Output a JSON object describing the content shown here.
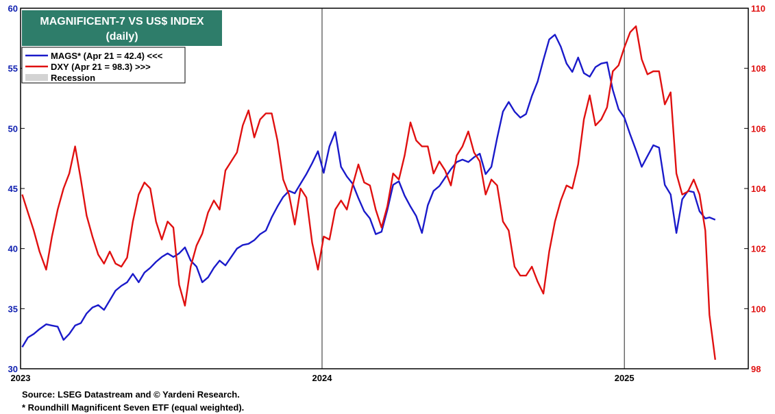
{
  "chart_data": {
    "type": "line",
    "title": "MAGNIFICENT-7 VS US$ INDEX",
    "subtitle": "(daily)",
    "x_tick_labels": [
      "2023",
      "2024",
      "2025"
    ],
    "x_range": [
      "2023-01-01",
      "2025-05-31"
    ],
    "year_starts": [
      "2023-01-01",
      "2024-01-01",
      "2025-01-01"
    ],
    "y_left": {
      "range": [
        30,
        60
      ],
      "ticks": [
        30,
        35,
        40,
        45,
        50,
        55,
        60
      ],
      "color": "#1a1aca"
    },
    "y_right": {
      "range": [
        98,
        110
      ],
      "ticks": [
        98,
        100,
        102,
        104,
        106,
        108,
        110
      ],
      "color": "#e01010"
    },
    "legend": {
      "placement": "top-left",
      "entries": [
        {
          "label": "MAGS* (Apr 21 = 42.4) <<<",
          "color": "#1a1aca"
        },
        {
          "label": "DXY (Apr 21 = 98.3) >>>",
          "color": "#e01010"
        },
        {
          "label": "Recession",
          "color": "#d3d3d3"
        }
      ]
    },
    "series": [
      {
        "axis": "left",
        "color": "#1a1aca",
        "points": [
          [
            "2023-01-03",
            31.8
          ],
          [
            "2023-01-10",
            32.6
          ],
          [
            "2023-01-17",
            32.9
          ],
          [
            "2023-01-24",
            33.3
          ],
          [
            "2023-02-01",
            33.7
          ],
          [
            "2023-02-08",
            33.6
          ],
          [
            "2023-02-15",
            33.5
          ],
          [
            "2023-02-22",
            32.4
          ],
          [
            "2023-03-01",
            32.9
          ],
          [
            "2023-03-08",
            33.6
          ],
          [
            "2023-03-15",
            33.8
          ],
          [
            "2023-03-22",
            34.6
          ],
          [
            "2023-03-29",
            35.1
          ],
          [
            "2023-04-05",
            35.3
          ],
          [
            "2023-04-12",
            34.9
          ],
          [
            "2023-04-19",
            35.7
          ],
          [
            "2023-04-26",
            36.5
          ],
          [
            "2023-05-03",
            36.9
          ],
          [
            "2023-05-10",
            37.2
          ],
          [
            "2023-05-17",
            37.9
          ],
          [
            "2023-05-24",
            37.2
          ],
          [
            "2023-05-31",
            38.0
          ],
          [
            "2023-06-07",
            38.4
          ],
          [
            "2023-06-14",
            38.9
          ],
          [
            "2023-06-21",
            39.3
          ],
          [
            "2023-06-28",
            39.6
          ],
          [
            "2023-07-05",
            39.3
          ],
          [
            "2023-07-12",
            39.6
          ],
          [
            "2023-07-19",
            40.1
          ],
          [
            "2023-07-26",
            39.0
          ],
          [
            "2023-08-02",
            38.5
          ],
          [
            "2023-08-09",
            37.2
          ],
          [
            "2023-08-16",
            37.6
          ],
          [
            "2023-08-23",
            38.4
          ],
          [
            "2023-08-30",
            39.0
          ],
          [
            "2023-09-06",
            38.6
          ],
          [
            "2023-09-13",
            39.3
          ],
          [
            "2023-09-20",
            40.0
          ],
          [
            "2023-09-27",
            40.3
          ],
          [
            "2023-10-04",
            40.4
          ],
          [
            "2023-10-11",
            40.7
          ],
          [
            "2023-10-18",
            41.2
          ],
          [
            "2023-10-25",
            41.5
          ],
          [
            "2023-11-01",
            42.6
          ],
          [
            "2023-11-08",
            43.5
          ],
          [
            "2023-11-15",
            44.3
          ],
          [
            "2023-11-22",
            44.8
          ],
          [
            "2023-11-29",
            44.6
          ],
          [
            "2023-12-06",
            45.4
          ],
          [
            "2023-12-13",
            46.2
          ],
          [
            "2023-12-20",
            47.1
          ],
          [
            "2023-12-27",
            48.1
          ],
          [
            "2024-01-03",
            46.3
          ],
          [
            "2024-01-10",
            48.5
          ],
          [
            "2024-01-17",
            49.7
          ],
          [
            "2024-01-24",
            46.8
          ],
          [
            "2024-01-31",
            46.0
          ],
          [
            "2024-02-07",
            45.4
          ],
          [
            "2024-02-14",
            44.2
          ],
          [
            "2024-02-21",
            43.1
          ],
          [
            "2024-02-28",
            42.5
          ],
          [
            "2024-03-06",
            41.2
          ],
          [
            "2024-03-13",
            41.4
          ],
          [
            "2024-03-20",
            43.2
          ],
          [
            "2024-03-27",
            45.3
          ],
          [
            "2024-04-03",
            45.6
          ],
          [
            "2024-04-10",
            44.4
          ],
          [
            "2024-04-17",
            43.5
          ],
          [
            "2024-04-24",
            42.7
          ],
          [
            "2024-05-01",
            41.3
          ],
          [
            "2024-05-08",
            43.6
          ],
          [
            "2024-05-15",
            44.8
          ],
          [
            "2024-05-22",
            45.2
          ],
          [
            "2024-05-29",
            45.9
          ],
          [
            "2024-06-05",
            46.6
          ],
          [
            "2024-06-12",
            47.2
          ],
          [
            "2024-06-19",
            47.4
          ],
          [
            "2024-06-26",
            47.2
          ],
          [
            "2024-07-03",
            47.6
          ],
          [
            "2024-07-10",
            47.9
          ],
          [
            "2024-07-17",
            46.2
          ],
          [
            "2024-07-24",
            46.8
          ],
          [
            "2024-07-31",
            49.2
          ],
          [
            "2024-08-07",
            51.4
          ],
          [
            "2024-08-14",
            52.2
          ],
          [
            "2024-08-21",
            51.4
          ],
          [
            "2024-08-28",
            50.9
          ],
          [
            "2024-09-04",
            51.2
          ],
          [
            "2024-09-11",
            52.7
          ],
          [
            "2024-09-18",
            53.9
          ],
          [
            "2024-09-25",
            55.7
          ],
          [
            "2024-10-02",
            57.4
          ],
          [
            "2024-10-09",
            57.8
          ],
          [
            "2024-10-16",
            56.8
          ],
          [
            "2024-10-23",
            55.4
          ],
          [
            "2024-10-30",
            54.7
          ],
          [
            "2024-11-06",
            55.9
          ],
          [
            "2024-11-13",
            54.6
          ],
          [
            "2024-11-20",
            54.3
          ],
          [
            "2024-11-27",
            55.1
          ],
          [
            "2024-12-04",
            55.4
          ],
          [
            "2024-12-11",
            55.5
          ],
          [
            "2024-12-18",
            53.2
          ],
          [
            "2024-12-25",
            51.6
          ],
          [
            "2025-01-01",
            50.9
          ],
          [
            "2025-01-08",
            49.5
          ],
          [
            "2025-01-15",
            48.2
          ],
          [
            "2025-01-22",
            46.8
          ],
          [
            "2025-01-29",
            47.7
          ],
          [
            "2025-02-05",
            48.6
          ],
          [
            "2025-02-12",
            48.4
          ],
          [
            "2025-02-19",
            45.3
          ],
          [
            "2025-02-26",
            44.5
          ],
          [
            "2025-03-05",
            41.3
          ],
          [
            "2025-03-12",
            44.1
          ],
          [
            "2025-03-19",
            44.8
          ],
          [
            "2025-03-26",
            44.7
          ],
          [
            "2025-04-02",
            43.1
          ],
          [
            "2025-04-09",
            42.5
          ],
          [
            "2025-04-14",
            42.6
          ],
          [
            "2025-04-21",
            42.4
          ]
        ]
      },
      {
        "axis": "right",
        "color": "#e01010",
        "points": [
          [
            "2023-01-03",
            103.8
          ],
          [
            "2023-01-10",
            103.2
          ],
          [
            "2023-01-17",
            102.6
          ],
          [
            "2023-01-24",
            101.9
          ],
          [
            "2023-02-01",
            101.3
          ],
          [
            "2023-02-08",
            102.4
          ],
          [
            "2023-02-15",
            103.3
          ],
          [
            "2023-02-22",
            104.0
          ],
          [
            "2023-03-01",
            104.5
          ],
          [
            "2023-03-08",
            105.4
          ],
          [
            "2023-03-15",
            104.3
          ],
          [
            "2023-03-22",
            103.1
          ],
          [
            "2023-03-29",
            102.4
          ],
          [
            "2023-04-05",
            101.8
          ],
          [
            "2023-04-12",
            101.5
          ],
          [
            "2023-04-19",
            101.9
          ],
          [
            "2023-04-26",
            101.5
          ],
          [
            "2023-05-03",
            101.4
          ],
          [
            "2023-05-10",
            101.7
          ],
          [
            "2023-05-17",
            102.9
          ],
          [
            "2023-05-24",
            103.8
          ],
          [
            "2023-05-31",
            104.2
          ],
          [
            "2023-06-07",
            104.0
          ],
          [
            "2023-06-14",
            102.9
          ],
          [
            "2023-06-21",
            102.3
          ],
          [
            "2023-06-28",
            102.9
          ],
          [
            "2023-07-05",
            102.7
          ],
          [
            "2023-07-12",
            100.8
          ],
          [
            "2023-07-19",
            100.1
          ],
          [
            "2023-07-26",
            101.4
          ],
          [
            "2023-08-02",
            102.1
          ],
          [
            "2023-08-09",
            102.5
          ],
          [
            "2023-08-16",
            103.2
          ],
          [
            "2023-08-23",
            103.6
          ],
          [
            "2023-08-30",
            103.3
          ],
          [
            "2023-09-06",
            104.6
          ],
          [
            "2023-09-13",
            104.9
          ],
          [
            "2023-09-20",
            105.2
          ],
          [
            "2023-09-27",
            106.1
          ],
          [
            "2023-10-04",
            106.6
          ],
          [
            "2023-10-11",
            105.7
          ],
          [
            "2023-10-18",
            106.3
          ],
          [
            "2023-10-25",
            106.5
          ],
          [
            "2023-11-01",
            106.5
          ],
          [
            "2023-11-08",
            105.6
          ],
          [
            "2023-11-15",
            104.3
          ],
          [
            "2023-11-22",
            103.8
          ],
          [
            "2023-11-29",
            102.8
          ],
          [
            "2023-12-06",
            104.0
          ],
          [
            "2023-12-13",
            103.7
          ],
          [
            "2023-12-20",
            102.2
          ],
          [
            "2023-12-27",
            101.3
          ],
          [
            "2024-01-03",
            102.4
          ],
          [
            "2024-01-10",
            102.3
          ],
          [
            "2024-01-17",
            103.3
          ],
          [
            "2024-01-24",
            103.6
          ],
          [
            "2024-01-31",
            103.3
          ],
          [
            "2024-02-07",
            104.1
          ],
          [
            "2024-02-14",
            104.8
          ],
          [
            "2024-02-21",
            104.2
          ],
          [
            "2024-02-28",
            104.1
          ],
          [
            "2024-03-06",
            103.3
          ],
          [
            "2024-03-13",
            102.7
          ],
          [
            "2024-03-20",
            103.4
          ],
          [
            "2024-03-27",
            104.5
          ],
          [
            "2024-04-03",
            104.3
          ],
          [
            "2024-04-10",
            105.1
          ],
          [
            "2024-04-17",
            106.2
          ],
          [
            "2024-04-24",
            105.6
          ],
          [
            "2024-05-01",
            105.4
          ],
          [
            "2024-05-08",
            105.4
          ],
          [
            "2024-05-15",
            104.5
          ],
          [
            "2024-05-22",
            104.9
          ],
          [
            "2024-05-29",
            104.6
          ],
          [
            "2024-06-05",
            104.1
          ],
          [
            "2024-06-12",
            105.1
          ],
          [
            "2024-06-19",
            105.4
          ],
          [
            "2024-06-26",
            105.9
          ],
          [
            "2024-07-03",
            105.2
          ],
          [
            "2024-07-10",
            104.9
          ],
          [
            "2024-07-17",
            103.8
          ],
          [
            "2024-07-24",
            104.3
          ],
          [
            "2024-07-31",
            104.1
          ],
          [
            "2024-08-07",
            102.9
          ],
          [
            "2024-08-14",
            102.6
          ],
          [
            "2024-08-21",
            101.4
          ],
          [
            "2024-08-28",
            101.1
          ],
          [
            "2024-09-04",
            101.1
          ],
          [
            "2024-09-11",
            101.4
          ],
          [
            "2024-09-18",
            100.9
          ],
          [
            "2024-09-25",
            100.5
          ],
          [
            "2024-10-02",
            101.9
          ],
          [
            "2024-10-09",
            102.9
          ],
          [
            "2024-10-16",
            103.6
          ],
          [
            "2024-10-23",
            104.1
          ],
          [
            "2024-10-30",
            104.0
          ],
          [
            "2024-11-06",
            104.8
          ],
          [
            "2024-11-13",
            106.3
          ],
          [
            "2024-11-20",
            107.1
          ],
          [
            "2024-11-27",
            106.1
          ],
          [
            "2024-12-04",
            106.3
          ],
          [
            "2024-12-11",
            106.7
          ],
          [
            "2024-12-18",
            107.9
          ],
          [
            "2024-12-25",
            108.1
          ],
          [
            "2025-01-01",
            108.7
          ],
          [
            "2025-01-08",
            109.2
          ],
          [
            "2025-01-15",
            109.4
          ],
          [
            "2025-01-22",
            108.3
          ],
          [
            "2025-01-29",
            107.8
          ],
          [
            "2025-02-05",
            107.9
          ],
          [
            "2025-02-12",
            107.9
          ],
          [
            "2025-02-19",
            106.8
          ],
          [
            "2025-02-26",
            107.2
          ],
          [
            "2025-03-05",
            104.5
          ],
          [
            "2025-03-12",
            103.8
          ],
          [
            "2025-03-19",
            103.9
          ],
          [
            "2025-03-26",
            104.3
          ],
          [
            "2025-04-02",
            103.8
          ],
          [
            "2025-04-09",
            102.6
          ],
          [
            "2025-04-14",
            99.8
          ],
          [
            "2025-04-21",
            98.3
          ]
        ]
      }
    ],
    "grid": false
  },
  "footer": {
    "source": "Source: LSEG Datastream and © Yardeni Research.",
    "note": "* Roundhill Magnificent Seven ETF (equal weighted)."
  }
}
